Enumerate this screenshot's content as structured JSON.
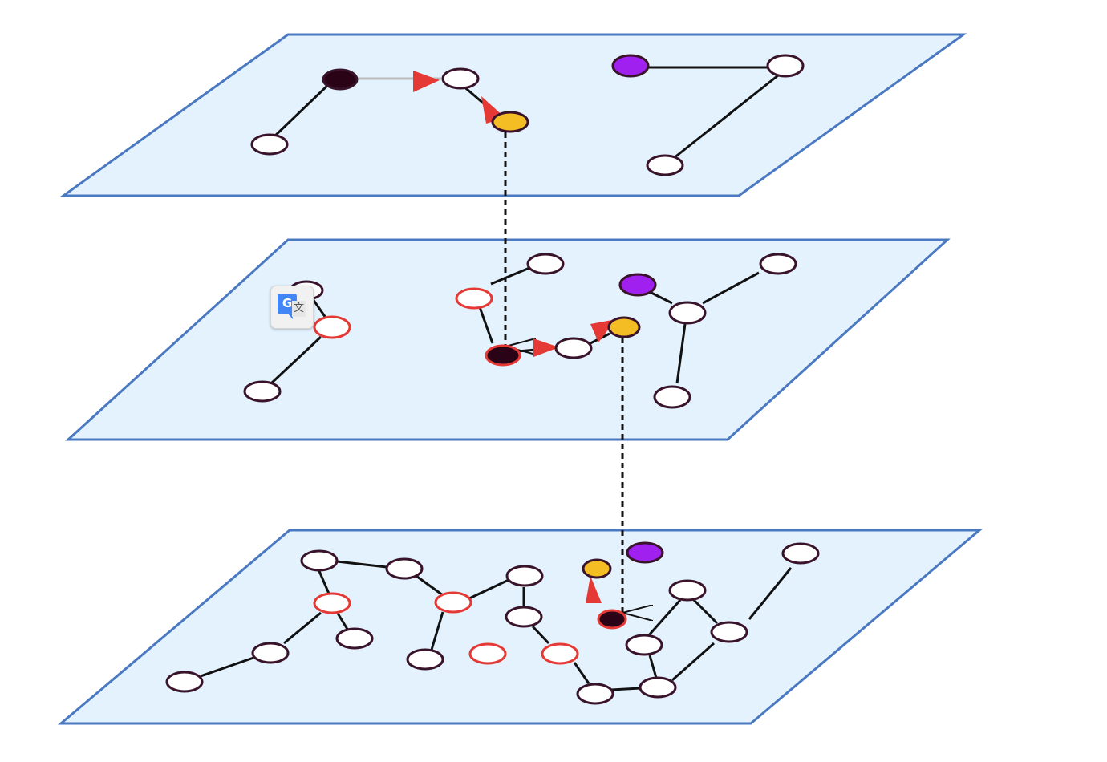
{
  "colors": {
    "layer_fill": "#e3f2fd",
    "layer_stroke": "#4a79c1",
    "node_fill": "#ffffff",
    "node_stroke": "#38132a",
    "node_highlight_stroke": "#e53935",
    "node_entry": "#2a0416",
    "node_target": "#f4bd24",
    "node_purple": "#a020f0",
    "edge": "#111111",
    "search_arrow": "#e53935",
    "layer_link": "#111111"
  },
  "translate_widget": {
    "icon": "google-translate-icon",
    "glyph_g": "G",
    "glyph_wen": "文"
  }
}
